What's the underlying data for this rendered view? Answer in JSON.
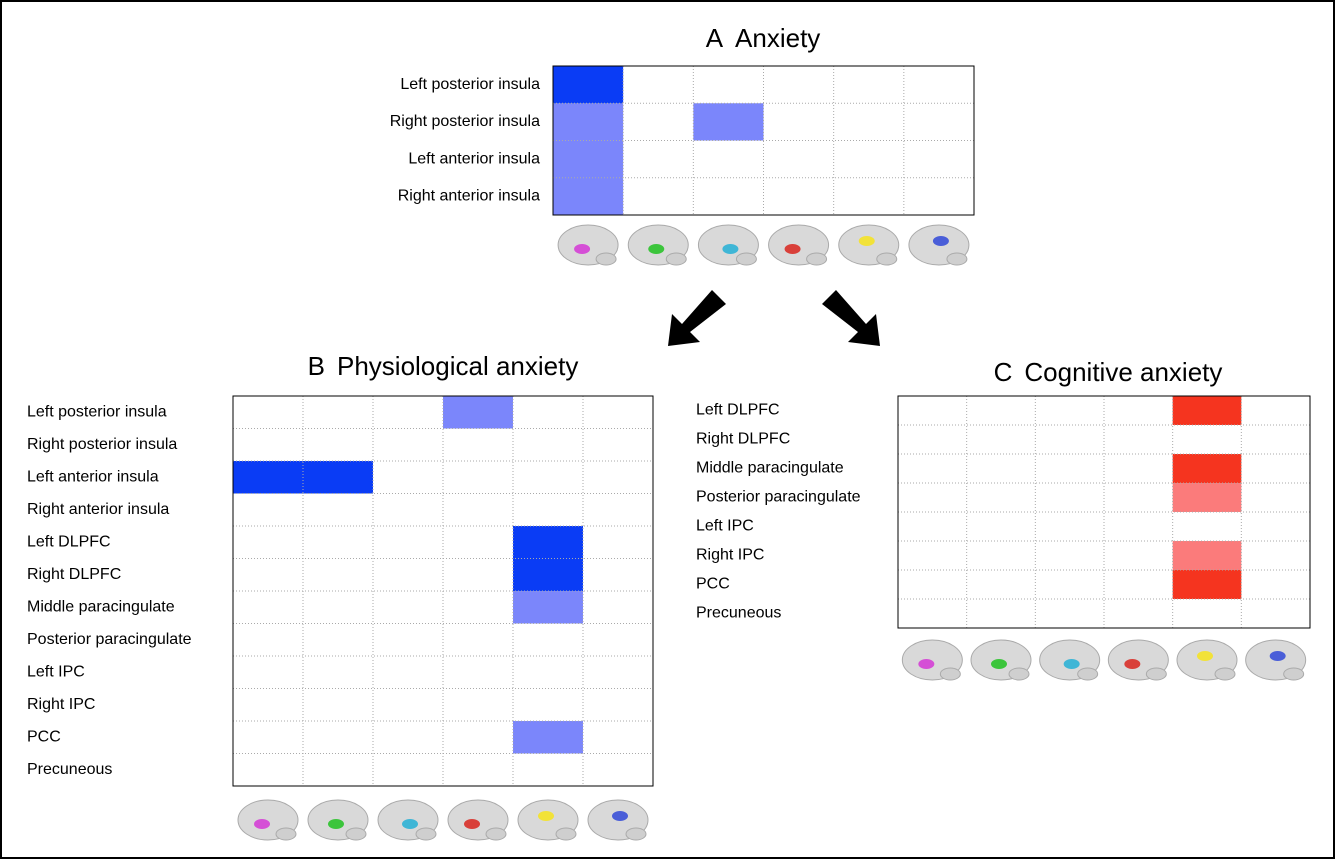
{
  "chart_data": [
    {
      "type": "heatmap",
      "panel": "A",
      "title": "Anxiety",
      "rows": [
        "Left posterior insula",
        "Right posterior insula",
        "Left anterior insula",
        "Right anterior insula"
      ],
      "values": [
        [
          2,
          0,
          0,
          0,
          0,
          0
        ],
        [
          1,
          0,
          1,
          0,
          0,
          0
        ],
        [
          1,
          0,
          0,
          0,
          0,
          0
        ],
        [
          1,
          0,
          0,
          0,
          0,
          0
        ]
      ],
      "colors": [
        "#ffffff",
        "#7b86fb",
        "#0a3cf5"
      ]
    },
    {
      "type": "heatmap",
      "panel": "B",
      "title": "Physiological anxiety",
      "rows": [
        "Left posterior insula",
        "Right posterior insula",
        "Left anterior insula",
        "Right anterior insula",
        "Left DLPFC",
        "Right DLPFC",
        "Middle paracingulate",
        "Posterior paracingulate",
        "Left IPC",
        "Right IPC",
        "PCC",
        "Precuneous"
      ],
      "values": [
        [
          0,
          0,
          0,
          1,
          0,
          0
        ],
        [
          0,
          0,
          0,
          0,
          0,
          0
        ],
        [
          2,
          2,
          0,
          0,
          0,
          0
        ],
        [
          0,
          0,
          0,
          0,
          0,
          0
        ],
        [
          0,
          0,
          0,
          0,
          2,
          0
        ],
        [
          0,
          0,
          0,
          0,
          2,
          0
        ],
        [
          0,
          0,
          0,
          0,
          1,
          0
        ],
        [
          0,
          0,
          0,
          0,
          0,
          0
        ],
        [
          0,
          0,
          0,
          0,
          0,
          0
        ],
        [
          0,
          0,
          0,
          0,
          0,
          0
        ],
        [
          0,
          0,
          0,
          0,
          1,
          0
        ],
        [
          0,
          0,
          0,
          0,
          0,
          0
        ]
      ],
      "colors": [
        "#ffffff",
        "#7b86fb",
        "#0a3cf5"
      ]
    },
    {
      "type": "heatmap",
      "panel": "C",
      "title": "Cognitive anxiety",
      "rows": [
        "Left DLPFC",
        "Right DLPFC",
        "Middle paracingulate",
        "Posterior paracingulate",
        "Left IPC",
        "Right IPC",
        "PCC",
        "Precuneous"
      ],
      "values": [
        [
          0,
          0,
          0,
          0,
          2,
          0
        ],
        [
          0,
          0,
          0,
          0,
          0,
          0
        ],
        [
          0,
          0,
          0,
          0,
          2,
          0
        ],
        [
          0,
          0,
          0,
          0,
          1,
          0
        ],
        [
          0,
          0,
          0,
          0,
          0,
          0
        ],
        [
          0,
          0,
          0,
          0,
          1,
          0
        ],
        [
          0,
          0,
          0,
          0,
          2,
          0
        ],
        [
          0,
          0,
          0,
          0,
          0,
          0
        ]
      ],
      "colors": [
        "#ffffff",
        "#fb7b7b",
        "#f5341f"
      ]
    }
  ]
}
